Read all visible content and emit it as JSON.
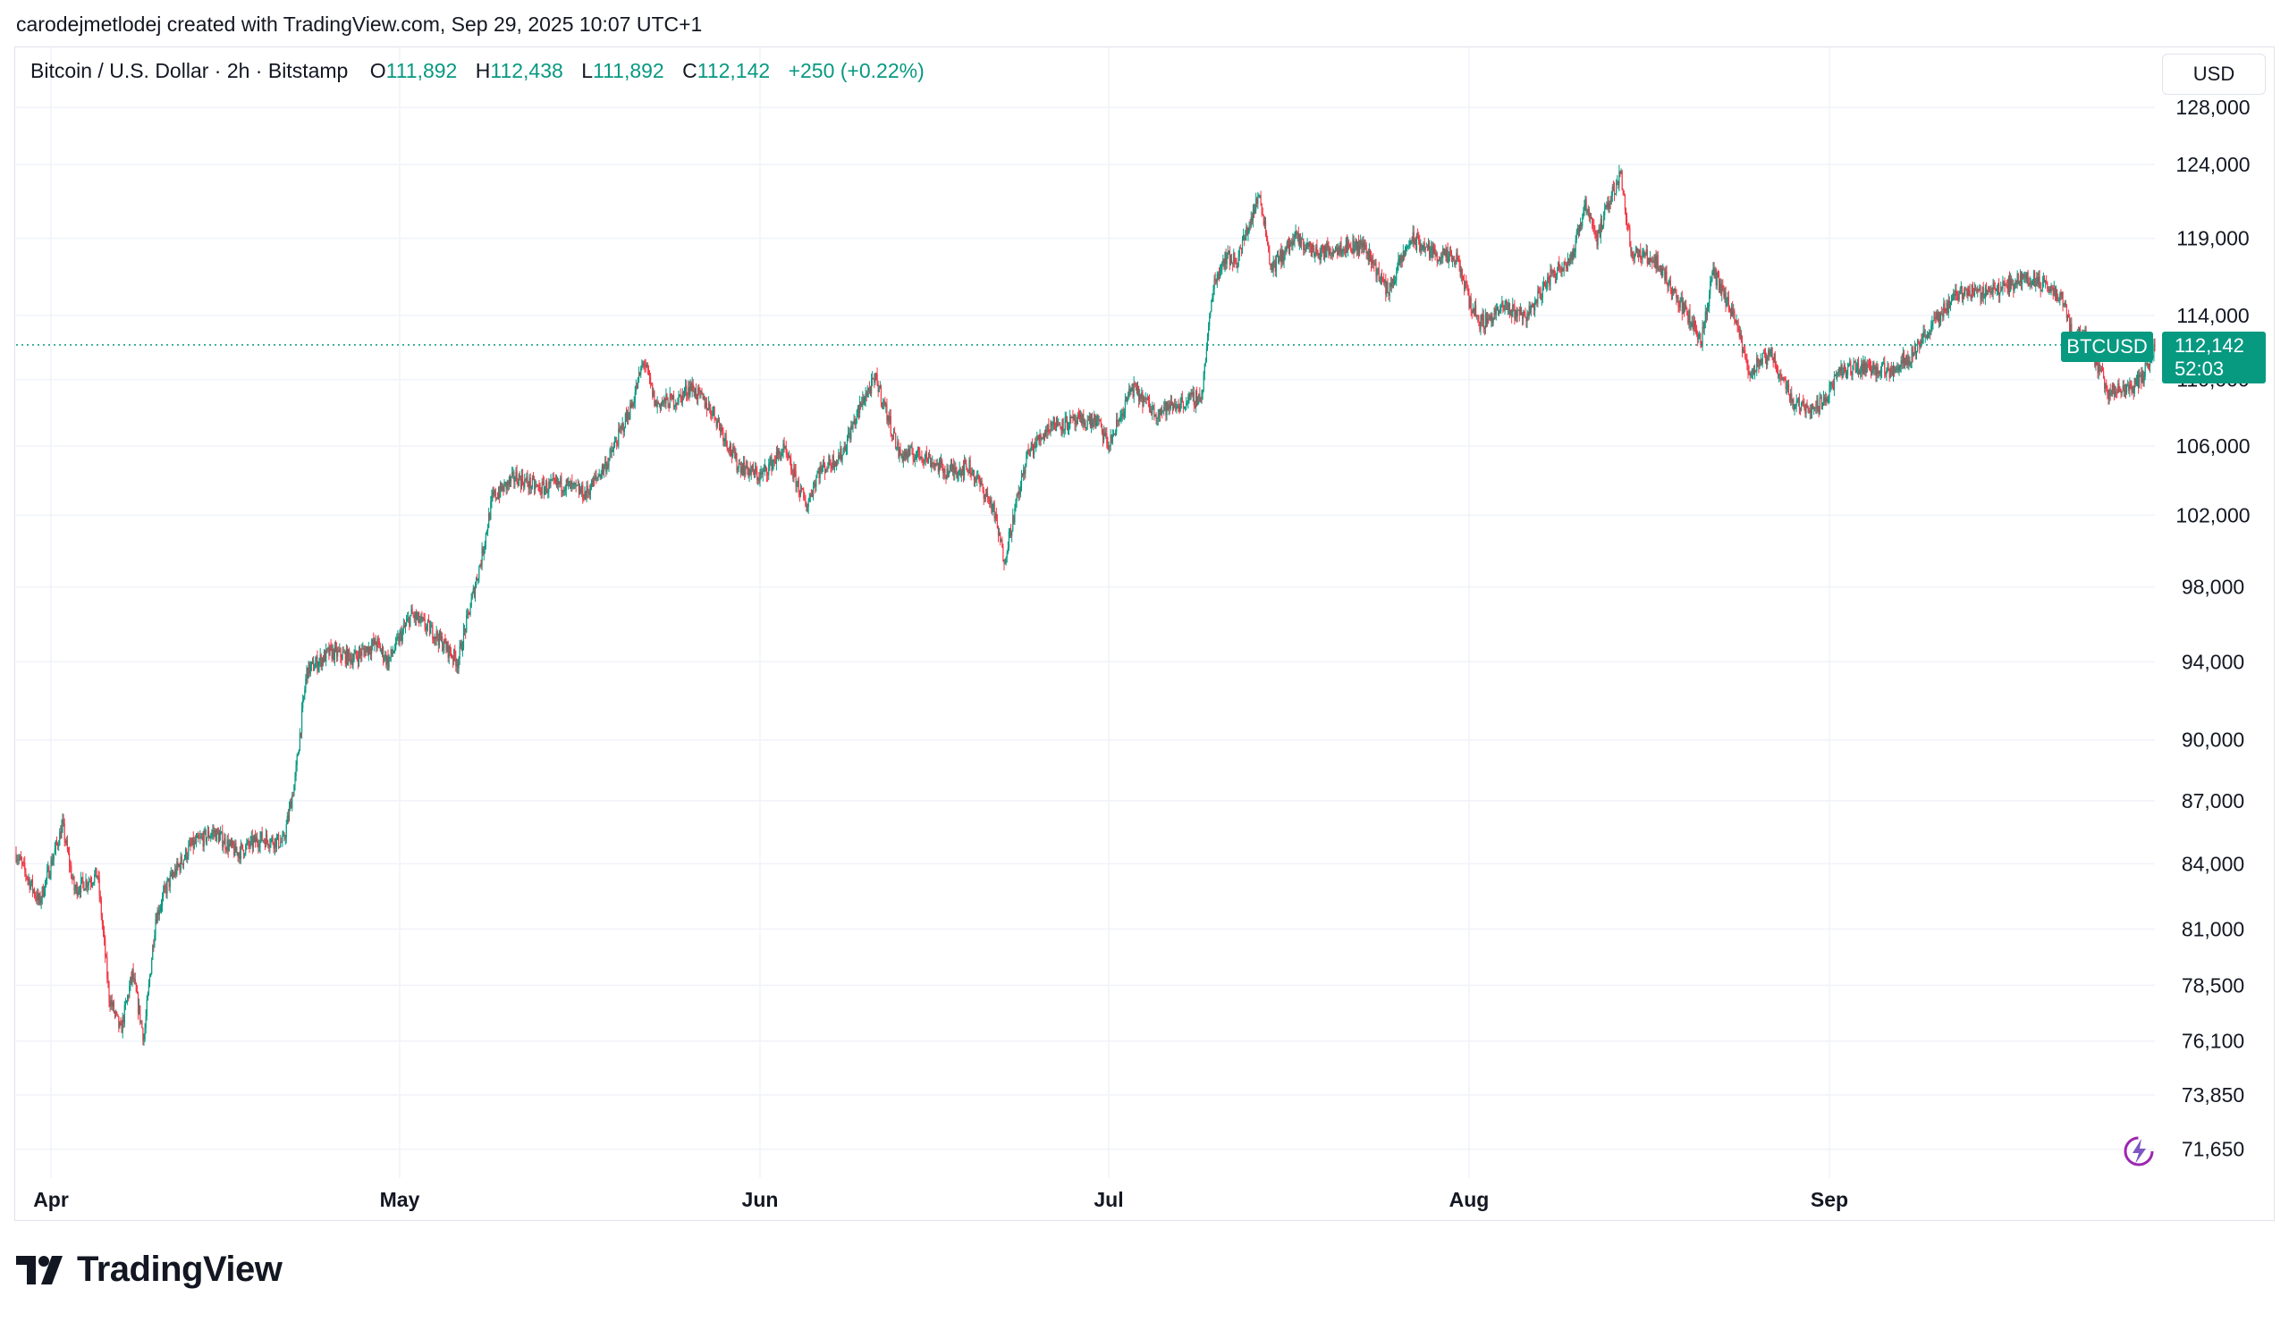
{
  "attribution": "carodejmetlodej created with TradingView.com, Sep 29, 2025 10:07 UTC+1",
  "legend": {
    "symbol": "Bitcoin / U.S. Dollar · 2h · Bitstamp",
    "open_label": "O",
    "open": "111,892",
    "high_label": "H",
    "high": "112,438",
    "low_label": "L",
    "low": "111,892",
    "close_label": "C",
    "close": "112,142",
    "change": "+250 (+0.22%)"
  },
  "currency_button": "USD",
  "last_price": {
    "symbol": "BTCUSD",
    "price": "112,142",
    "countdown": "52:03"
  },
  "logo_text": "TradingView",
  "colors": {
    "up": "#089981",
    "down": "#f23645",
    "grid": "#f0f3fa",
    "text": "#131722"
  },
  "chart_data": {
    "type": "line",
    "subtype": "candlestick",
    "symbol": "BTCUSD",
    "timeframe": "2h",
    "scale": "log",
    "xlim": [
      "2025-03-29",
      "2025-09-29"
    ],
    "ylim": [
      70500,
      130000
    ],
    "y_ticks": [
      128000,
      124000,
      119000,
      114000,
      110000,
      106000,
      102000,
      98000,
      94000,
      90000,
      87000,
      84000,
      81000,
      78500,
      76100,
      73850,
      71650
    ],
    "y_tick_labels": [
      "128,000",
      "124,000",
      "119,000",
      "114,000",
      "110,000",
      "106,000",
      "102,000",
      "98,000",
      "94,000",
      "90,000",
      "87,000",
      "84,000",
      "81,000",
      "78,500",
      "76,100",
      "73,850",
      "71,650"
    ],
    "x_ticks": [
      "2025-04-01",
      "2025-05-01",
      "2025-06-01",
      "2025-07-01",
      "2025-08-01",
      "2025-09-01"
    ],
    "x_tick_labels": [
      "Apr",
      "May",
      "Jun",
      "Jul",
      "Aug",
      "Sep"
    ],
    "last_price": 112142,
    "grid": true,
    "price_path": [
      [
        "2025-03-29",
        84500
      ],
      [
        "2025-03-31",
        82200
      ],
      [
        "2025-04-02",
        85800
      ],
      [
        "2025-04-03",
        82800
      ],
      [
        "2025-04-05",
        83500
      ],
      [
        "2025-04-06",
        78000
      ],
      [
        "2025-04-07",
        76500
      ],
      [
        "2025-04-08",
        79000
      ],
      [
        "2025-04-09",
        76200
      ],
      [
        "2025-04-10",
        81500
      ],
      [
        "2025-04-11",
        83000
      ],
      [
        "2025-04-13",
        84800
      ],
      [
        "2025-04-15",
        85500
      ],
      [
        "2025-04-17",
        84500
      ],
      [
        "2025-04-19",
        85200
      ],
      [
        "2025-04-21",
        85000
      ],
      [
        "2025-04-22",
        88000
      ],
      [
        "2025-04-23",
        93500
      ],
      [
        "2025-04-25",
        94500
      ],
      [
        "2025-04-27",
        94200
      ],
      [
        "2025-04-29",
        95000
      ],
      [
        "2025-04-30",
        94000
      ],
      [
        "2025-05-02",
        96500
      ],
      [
        "2025-05-04",
        95500
      ],
      [
        "2025-05-06",
        94000
      ],
      [
        "2025-05-08",
        99500
      ],
      [
        "2025-05-09",
        103000
      ],
      [
        "2025-05-11",
        104200
      ],
      [
        "2025-05-13",
        103500
      ],
      [
        "2025-05-15",
        103800
      ],
      [
        "2025-05-17",
        103200
      ],
      [
        "2025-05-19",
        105200
      ],
      [
        "2025-05-21",
        108500
      ],
      [
        "2025-05-22",
        111200
      ],
      [
        "2025-05-23",
        108500
      ],
      [
        "2025-05-25",
        108800
      ],
      [
        "2025-05-26",
        109600
      ],
      [
        "2025-05-28",
        108000
      ],
      [
        "2025-05-30",
        105000
      ],
      [
        "2025-06-01",
        104200
      ],
      [
        "2025-06-03",
        105800
      ],
      [
        "2025-06-05",
        102500
      ],
      [
        "2025-06-06",
        104500
      ],
      [
        "2025-06-08",
        105500
      ],
      [
        "2025-06-10",
        109000
      ],
      [
        "2025-06-11",
        110000
      ],
      [
        "2025-06-13",
        105500
      ],
      [
        "2025-06-15",
        105500
      ],
      [
        "2025-06-17",
        104500
      ],
      [
        "2025-06-19",
        104800
      ],
      [
        "2025-06-21",
        102500
      ],
      [
        "2025-06-22",
        99500
      ],
      [
        "2025-06-23",
        102500
      ],
      [
        "2025-06-24",
        105500
      ],
      [
        "2025-06-26",
        107300
      ],
      [
        "2025-06-28",
        107400
      ],
      [
        "2025-06-30",
        107500
      ],
      [
        "2025-07-01",
        106000
      ],
      [
        "2025-07-03",
        109500
      ],
      [
        "2025-07-05",
        108000
      ],
      [
        "2025-07-07",
        108500
      ],
      [
        "2025-07-09",
        109000
      ],
      [
        "2025-07-10",
        116000
      ],
      [
        "2025-07-11",
        117800
      ],
      [
        "2025-07-12",
        117500
      ],
      [
        "2025-07-14",
        122000
      ],
      [
        "2025-07-15",
        117000
      ],
      [
        "2025-07-17",
        119000
      ],
      [
        "2025-07-19",
        118000
      ],
      [
        "2025-07-21",
        118500
      ],
      [
        "2025-07-23",
        118500
      ],
      [
        "2025-07-25",
        115500
      ],
      [
        "2025-07-27",
        119000
      ],
      [
        "2025-07-29",
        118000
      ],
      [
        "2025-07-31",
        117500
      ],
      [
        "2025-08-01",
        115000
      ],
      [
        "2025-08-02",
        113500
      ],
      [
        "2025-08-04",
        114500
      ],
      [
        "2025-08-06",
        114000
      ],
      [
        "2025-08-08",
        116500
      ],
      [
        "2025-08-10",
        118000
      ],
      [
        "2025-08-11",
        121500
      ],
      [
        "2025-08-12",
        119000
      ],
      [
        "2025-08-14",
        123500
      ],
      [
        "2025-08-15",
        118000
      ],
      [
        "2025-08-17",
        117600
      ],
      [
        "2025-08-19",
        115000
      ],
      [
        "2025-08-21",
        112500
      ],
      [
        "2025-08-22",
        116800
      ],
      [
        "2025-08-24",
        113500
      ],
      [
        "2025-08-25",
        110500
      ],
      [
        "2025-08-27",
        111500
      ],
      [
        "2025-08-29",
        108500
      ],
      [
        "2025-08-31",
        108300
      ],
      [
        "2025-09-02",
        110500
      ],
      [
        "2025-09-04",
        110800
      ],
      [
        "2025-09-06",
        110500
      ],
      [
        "2025-09-08",
        111500
      ],
      [
        "2025-09-10",
        113500
      ],
      [
        "2025-09-12",
        115500
      ],
      [
        "2025-09-14",
        115500
      ],
      [
        "2025-09-16",
        115800
      ],
      [
        "2025-09-18",
        116500
      ],
      [
        "2025-09-20",
        115700
      ],
      [
        "2025-09-21",
        115200
      ],
      [
        "2025-09-22",
        112500
      ],
      [
        "2025-09-23",
        112800
      ],
      [
        "2025-09-25",
        109200
      ],
      [
        "2025-09-27",
        109500
      ],
      [
        "2025-09-28",
        110200
      ],
      [
        "2025-09-29",
        112142
      ]
    ]
  }
}
